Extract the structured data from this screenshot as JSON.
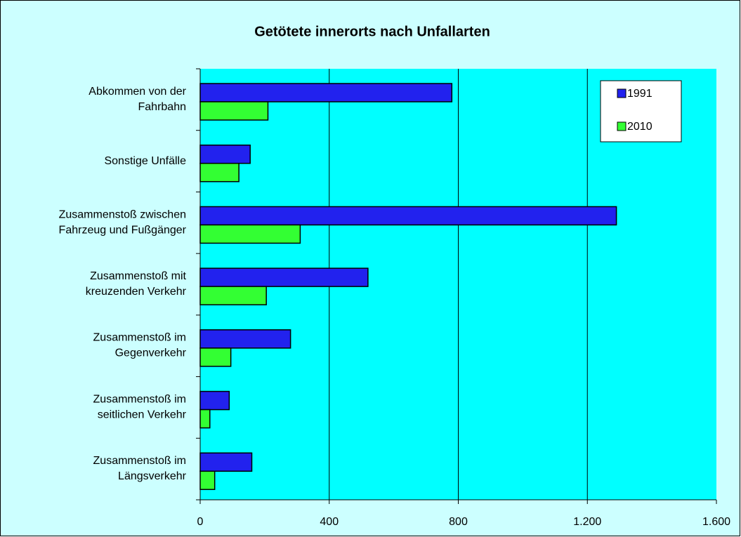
{
  "chart_data": {
    "type": "hbar",
    "title": "Getötete innerorts nach Unfallarten",
    "categories": [
      "Abkommen von der\nFahrbahn",
      "Sonstige Unfälle",
      "Zusammenstoß zwischen\nFahrzeug und Fußgänger",
      "Zusammenstoß mit\nkreuzenden Verkehr",
      "Zusammenstoß im\nGegenverkehr",
      "Zusammenstoß im\nseitlichen Verkehr",
      "Zusammenstoß im\nLängsverkehr"
    ],
    "series": [
      {
        "name": "1991",
        "color": "#2222ee",
        "values": [
          780,
          155,
          1290,
          520,
          280,
          90,
          160
        ]
      },
      {
        "name": "2010",
        "color": "#33ff33",
        "values": [
          210,
          120,
          310,
          205,
          95,
          30,
          45
        ]
      }
    ],
    "xlim": [
      0,
      1600
    ],
    "xticks": [
      0,
      400,
      800,
      {
        "value": 1200,
        "label": "1.200"
      },
      {
        "value": 1600,
        "label": "1.600"
      }
    ],
    "grid": true,
    "legend": "top-right"
  }
}
